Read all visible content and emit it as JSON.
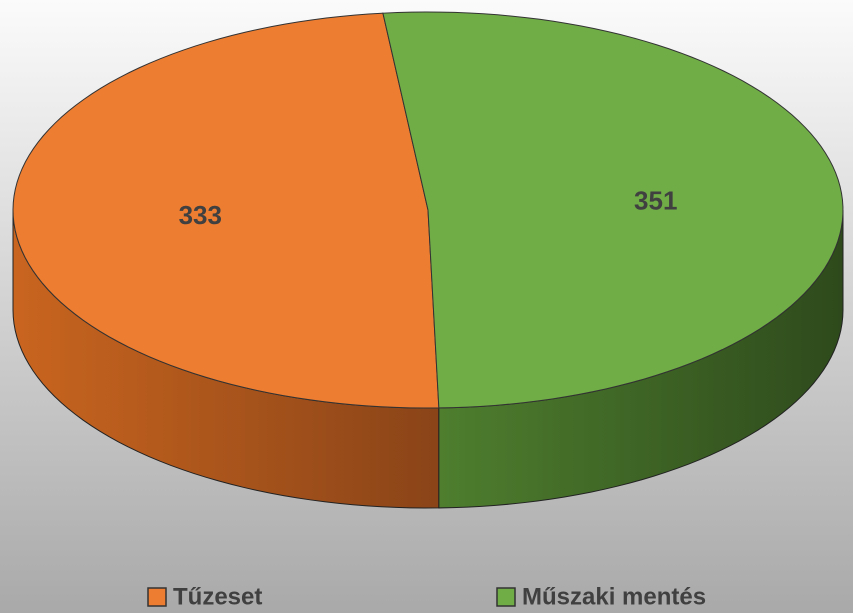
{
  "chart_data": {
    "type": "pie3d",
    "categories": [
      "Tűzeset",
      "Műszaki mentés"
    ],
    "values": [
      333,
      351
    ],
    "colors": [
      "#ED7D31",
      "#70AD47"
    ],
    "side_colors": [
      [
        "#C9651F",
        "#8A4418"
      ],
      [
        "#4E7E2E",
        "#2E4A1C"
      ]
    ]
  }
}
